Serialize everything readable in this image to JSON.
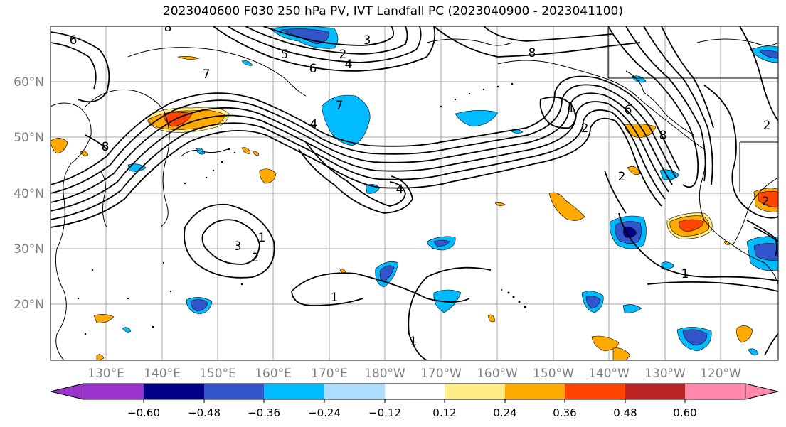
{
  "title": "2023040600 F030 250 hPa PV, IVT Landfall PC (2023040900 - 2023041100)",
  "map": {
    "lat_labels": [
      "60°N",
      "50°N",
      "40°N",
      "30°N",
      "20°N"
    ],
    "lon_labels": [
      "130°E",
      "140°E",
      "150°E",
      "160°E",
      "170°E",
      "180°W",
      "170°W",
      "160°W",
      "150°W",
      "140°W",
      "130°W",
      "120°W"
    ],
    "contour_labels": [
      "6",
      "8",
      "5",
      "2",
      "3",
      "6",
      "4",
      "8",
      "7",
      "7",
      "4",
      "8",
      "1",
      "2",
      "6",
      "8",
      "2",
      "4",
      "2",
      "1",
      "3",
      "2",
      "1",
      "1",
      "1",
      "2"
    ],
    "grid": "on"
  },
  "colorbar": {
    "tick_labels": [
      "−0.60",
      "−0.48",
      "−0.36",
      "−0.24",
      "−0.12",
      "0.12",
      "0.24",
      "0.36",
      "0.48",
      "0.60"
    ],
    "colors": [
      "#9933cc",
      "#000088",
      "#3355cc",
      "#00bbff",
      "#aaddff",
      "#ffffff",
      "#ffee88",
      "#ffaa00",
      "#ff4400",
      "#bb2222",
      "#ff88aa"
    ]
  }
}
